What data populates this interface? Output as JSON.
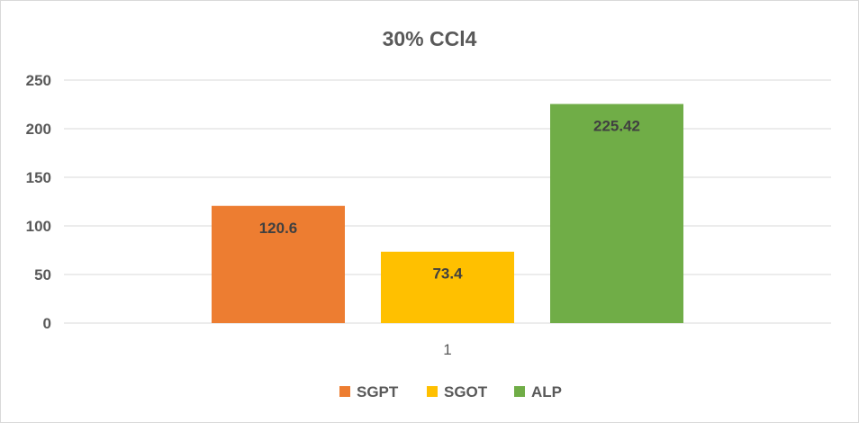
{
  "chart_data": {
    "type": "bar",
    "title": "30% CCl4",
    "categories": [
      "1"
    ],
    "series": [
      {
        "name": "SGPT",
        "values": [
          120.6
        ],
        "color": "#ed7d31"
      },
      {
        "name": "SGOT",
        "values": [
          73.4
        ],
        "color": "#ffc000"
      },
      {
        "name": "ALP",
        "values": [
          225.42
        ],
        "color": "#70ad47"
      }
    ],
    "data_labels": [
      "120.6",
      "73.4",
      "225.42"
    ],
    "yticks": [
      "0",
      "50",
      "100",
      "150",
      "200",
      "250"
    ],
    "ylim": [
      0,
      250
    ],
    "xlabel": "",
    "ylabel": "",
    "grid": true,
    "legend_position": "bottom"
  }
}
